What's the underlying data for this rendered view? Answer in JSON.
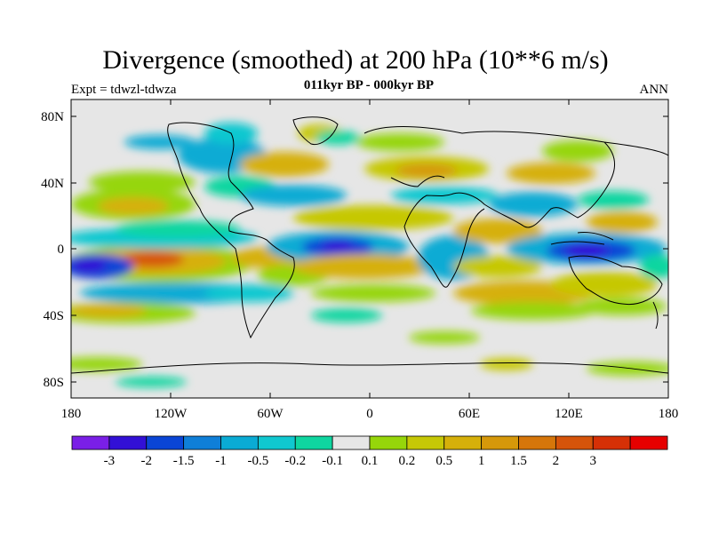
{
  "title": "Divergence (smoothed) at 200 hPa (10**6 m/s)",
  "subtitle": "011kyr BP - 000kyr BP",
  "left_label": "Expt = tdwzl-tdwza",
  "right_label": "ANN",
  "lat_ticks": [
    "80N",
    "40N",
    "0",
    "40S",
    "80S"
  ],
  "lon_ticks": [
    "180",
    "120W",
    "60W",
    "0",
    "60E",
    "120E",
    "180"
  ],
  "colorbar": {
    "colors": [
      "#7a1fe6",
      "#3210d6",
      "#0a45d6",
      "#0f7fd8",
      "#0aabd4",
      "#10c8d0",
      "#0fd6a0",
      "#e6e6e6",
      "#96d60a",
      "#c6c806",
      "#d6b00a",
      "#d6980a",
      "#d6760a",
      "#d6540a",
      "#d63006",
      "#e60000"
    ],
    "labels": [
      "-3",
      "-2",
      "-1.5",
      "-1",
      "-0.5",
      "-0.2",
      "-0.1",
      "0.1",
      "0.2",
      "0.5",
      "1",
      "1.5",
      "2",
      "3"
    ]
  }
}
